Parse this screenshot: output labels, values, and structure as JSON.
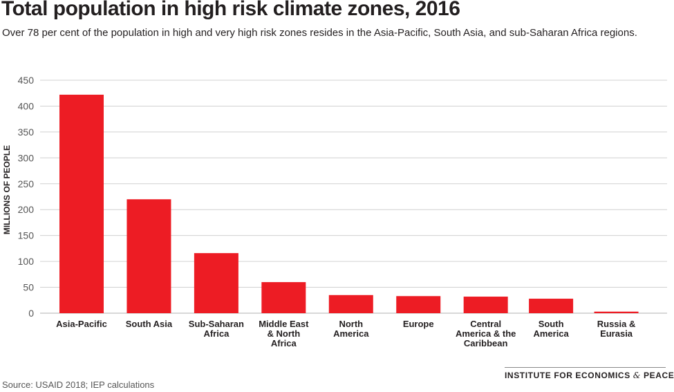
{
  "title": "Total population in high risk climate zones, 2016",
  "subtitle": "Over 78 per cent of the population in high and very high risk zones resides in the Asia-Pacific, South Asia, and sub-Saharan Africa regions.",
  "source": "Source: USAID 2018; IEP calculations",
  "brand": {
    "part1": "INSTITUTE FOR ECONOMICS",
    "amp": "&",
    "part2": "PEACE"
  },
  "colors": {
    "bar": "#ed1c24",
    "grid": "#d0d0d0",
    "tick_text": "#555555",
    "label_text": "#231f20"
  },
  "chart_data": {
    "type": "bar",
    "title": "Total population in high risk climate zones, 2016",
    "xlabel": "",
    "ylabel": "MILLIONS OF PEOPLE",
    "ylim": [
      0,
      450
    ],
    "yticks": [
      0,
      50,
      100,
      150,
      200,
      250,
      300,
      350,
      400,
      450
    ],
    "grid": true,
    "categories": [
      "Asia-Pacific",
      "South Asia",
      "Sub-Saharan Africa",
      "Middle East & North Africa",
      "North America",
      "Europe",
      "Central America & the Caribbean",
      "South America",
      "Russia & Eurasia"
    ],
    "category_lines": [
      [
        "Asia-Pacific"
      ],
      [
        "South Asia"
      ],
      [
        "Sub-Saharan",
        "Africa"
      ],
      [
        "Middle East",
        "& North",
        "Africa"
      ],
      [
        "North",
        "America"
      ],
      [
        "Europe"
      ],
      [
        "Central",
        "America & the",
        "Caribbean"
      ],
      [
        "South",
        "America"
      ],
      [
        "Russia &",
        "Eurasia"
      ]
    ],
    "values": [
      422,
      220,
      116,
      60,
      35,
      33,
      32,
      28,
      3
    ]
  }
}
